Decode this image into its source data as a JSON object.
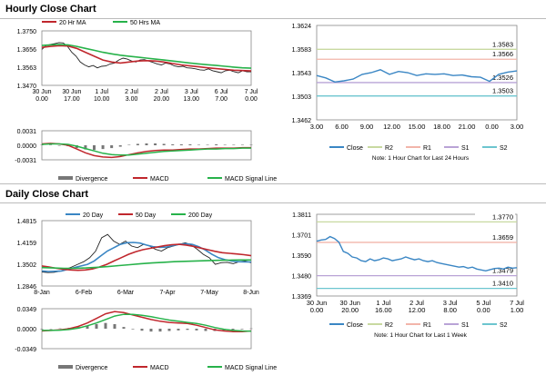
{
  "sections": {
    "hourly_title": "Hourly Close Chart",
    "daily_title": "Daily Close Chart"
  },
  "colors": {
    "close": "#3a86c4",
    "ma_fast": "#c0272d",
    "ma_slow": "#27b24a",
    "blue": "#3a86c4",
    "r2": "#c8d9a0",
    "r1": "#f2b5aa",
    "s1": "#b9a3d6",
    "s2": "#6cc5cf",
    "divergence": "#777777",
    "grid": "#cccccc"
  },
  "chart_data": [
    {
      "id": "hourly_price",
      "type": "line",
      "title": "Hourly Close Chart",
      "legend": [
        "20 Hr MA",
        "50 Hrs MA"
      ],
      "yticks": [
        "1.3750",
        "1.3656",
        "1.3563",
        "1.3470"
      ],
      "ylim": [
        1.347,
        1.375
      ],
      "xticks": [
        [
          "30 Jun",
          "0.00"
        ],
        [
          "30 Jun",
          "17.00"
        ],
        [
          "1 Jul",
          "10.00"
        ],
        [
          "2 Jul",
          "3.00"
        ],
        [
          "2 Jul",
          "20.00"
        ],
        [
          "3 Jul",
          "13.00"
        ],
        [
          "6 Jul",
          "7.00"
        ],
        [
          "7 Jul",
          "0.00"
        ]
      ],
      "series": [
        {
          "name": "Close",
          "values": [
            1.3655,
            1.3675,
            1.368,
            1.3684,
            1.369,
            1.3688,
            1.367,
            1.364,
            1.362,
            1.359,
            1.3575,
            1.3565,
            1.3572,
            1.356,
            1.3568,
            1.357,
            1.358,
            1.3585,
            1.36,
            1.361,
            1.3605,
            1.3595,
            1.359,
            1.36,
            1.3602,
            1.3595,
            1.3588,
            1.358,
            1.3575,
            1.3585,
            1.358,
            1.357,
            1.3565,
            1.3568,
            1.356,
            1.3558,
            1.3555,
            1.355,
            1.3548,
            1.3555,
            1.3545,
            1.354,
            1.3535,
            1.3545,
            1.3548,
            1.354,
            1.3535,
            1.3545,
            1.354,
            1.354
          ]
        },
        {
          "name": "20 Hr MA",
          "values": [
            1.3665,
            1.367,
            1.3674,
            1.3672,
            1.366,
            1.364,
            1.362,
            1.36,
            1.359,
            1.3585,
            1.359,
            1.3595,
            1.3597,
            1.3595,
            1.359,
            1.3582,
            1.3575,
            1.357,
            1.3565,
            1.356,
            1.3556,
            1.3552,
            1.3548,
            1.3546,
            1.3544
          ]
        },
        {
          "name": "50 Hrs MA",
          "values": [
            1.3675,
            1.3678,
            1.368,
            1.3678,
            1.367,
            1.366,
            1.365,
            1.364,
            1.3632,
            1.3625,
            1.362,
            1.3615,
            1.361,
            1.3605,
            1.36,
            1.3595,
            1.359,
            1.3585,
            1.358,
            1.3576,
            1.3572,
            1.3568,
            1.3564,
            1.356,
            1.3558
          ]
        }
      ]
    },
    {
      "id": "hourly_macd",
      "type": "line",
      "legend": [
        "Divergence",
        "MACD",
        "MACD Signal Line"
      ],
      "yticks": [
        "0.0031",
        "0.0000",
        "-0.0031"
      ],
      "ylim": [
        -0.0031,
        0.0031
      ],
      "series": [
        {
          "name": "MACD",
          "values": [
            0.0003,
            0.0004,
            0.0003,
            0.0,
            -0.0008,
            -0.0016,
            -0.0022,
            -0.0025,
            -0.0026,
            -0.0024,
            -0.002,
            -0.0016,
            -0.0013,
            -0.0011,
            -0.001,
            -0.001,
            -0.0009,
            -0.0008,
            -0.0008,
            -0.0007,
            -0.0006,
            -0.0006,
            -0.0006,
            -0.0005,
            -0.0005
          ]
        },
        {
          "name": "MACD Signal Line",
          "values": [
            0.0002,
            0.0003,
            0.0003,
            0.0002,
            -0.0002,
            -0.0007,
            -0.0012,
            -0.0017,
            -0.002,
            -0.0021,
            -0.0021,
            -0.0019,
            -0.0017,
            -0.0015,
            -0.0013,
            -0.0012,
            -0.0011,
            -0.001,
            -0.0009,
            -0.0008,
            -0.0008,
            -0.0007,
            -0.0007,
            -0.0006,
            -0.0006
          ]
        }
      ]
    },
    {
      "id": "hourly_levels",
      "type": "line",
      "yticks": [
        "1.3624",
        "1.3583",
        "1.3543",
        "1.3503",
        "1.3462"
      ],
      "ylim": [
        1.3462,
        1.3624
      ],
      "xticks": [
        "3.00",
        "6.00",
        "9.00",
        "12.00",
        "15.00",
        "18.00",
        "21.00",
        "0.00",
        "3.00"
      ],
      "levels": [
        {
          "name": "R2",
          "value": 1.3583,
          "label": "1.3583"
        },
        {
          "name": "R1",
          "value": 1.3566,
          "label": "1.3566"
        },
        {
          "name": "S1",
          "value": 1.3526,
          "label": "1.3526"
        },
        {
          "name": "S2",
          "value": 1.3503,
          "label": "1.3503"
        }
      ],
      "series": [
        {
          "name": "Close",
          "values": [
            1.3538,
            1.3534,
            1.3527,
            1.3529,
            1.3532,
            1.354,
            1.3543,
            1.3548,
            1.354,
            1.3545,
            1.3543,
            1.3538,
            1.3541,
            1.354,
            1.3541,
            1.3538,
            1.3539,
            1.3536,
            1.3535,
            1.3528,
            1.354,
            1.3544,
            1.3546
          ]
        }
      ],
      "legend": [
        "Close",
        "R2",
        "R1",
        "S1",
        "S2"
      ],
      "note": "Note: 1 Hour Chart for Last 24 Hours"
    },
    {
      "id": "daily_price",
      "type": "line",
      "title": "Daily Close Chart",
      "legend": [
        "20 Day",
        "50 Day",
        "200 Day"
      ],
      "yticks": [
        "1.4815",
        "1.4159",
        "1.3502",
        "1.2846"
      ],
      "ylim": [
        1.2846,
        1.4815
      ],
      "xticks": [
        "8-Jan",
        "6-Feb",
        "6-Mar",
        "7-Apr",
        "7-May",
        "8-Jun"
      ],
      "series": [
        {
          "name": "Close",
          "values": [
            1.327,
            1.325,
            1.326,
            1.329,
            1.335,
            1.342,
            1.35,
            1.358,
            1.37,
            1.39,
            1.43,
            1.44,
            1.42,
            1.41,
            1.42,
            1.405,
            1.4,
            1.41,
            1.405,
            1.395,
            1.39,
            1.4,
            1.405,
            1.41,
            1.415,
            1.408,
            1.395,
            1.38,
            1.37,
            1.35,
            1.355,
            1.356,
            1.352,
            1.358,
            1.36,
            1.355
          ]
        },
        {
          "name": "20 Day",
          "values": [
            1.33,
            1.328,
            1.329,
            1.33,
            1.335,
            1.34,
            1.345,
            1.35,
            1.36,
            1.375,
            1.39,
            1.4,
            1.41,
            1.415,
            1.416,
            1.414,
            1.408,
            1.403,
            1.401,
            1.402,
            1.406,
            1.41,
            1.412,
            1.41,
            1.403,
            1.393,
            1.38,
            1.37,
            1.364,
            1.36,
            1.358,
            1.357,
            1.357
          ]
        },
        {
          "name": "50 Day",
          "values": [
            1.345,
            1.342,
            1.338,
            1.335,
            1.333,
            1.332,
            1.333,
            1.336,
            1.342,
            1.35,
            1.36,
            1.37,
            1.38,
            1.388,
            1.394,
            1.398,
            1.402,
            1.406,
            1.409,
            1.41,
            1.408,
            1.404,
            1.399,
            1.394,
            1.389,
            1.385,
            1.383,
            1.381,
            1.379,
            1.376
          ]
        },
        {
          "name": "200 Day",
          "values": [
            1.34,
            1.339,
            1.338,
            1.338,
            1.339,
            1.341,
            1.343,
            1.346,
            1.349,
            1.352,
            1.354,
            1.356,
            1.358,
            1.359,
            1.36,
            1.361,
            1.362,
            1.3625,
            1.363,
            1.3632
          ]
        }
      ]
    },
    {
      "id": "daily_macd",
      "type": "line",
      "legend": [
        "Divergence",
        "MACD",
        "MACD Signal Line"
      ],
      "yticks": [
        "0.0349",
        "0.0000",
        "-0.0349"
      ],
      "ylim": [
        -0.0349,
        0.0349
      ],
      "series": [
        {
          "name": "MACD",
          "values": [
            -0.004,
            -0.003,
            -0.002,
            0.0,
            0.004,
            0.01,
            0.018,
            0.026,
            0.03,
            0.028,
            0.024,
            0.02,
            0.016,
            0.013,
            0.011,
            0.01,
            0.009,
            0.006,
            0.002,
            -0.002,
            -0.004,
            -0.005,
            -0.005,
            -0.004
          ]
        },
        {
          "name": "MACD Signal Line",
          "values": [
            -0.003,
            -0.003,
            -0.0025,
            -0.0015,
            0.001,
            0.005,
            0.01,
            0.016,
            0.022,
            0.025,
            0.025,
            0.0235,
            0.021,
            0.018,
            0.015,
            0.013,
            0.011,
            0.009,
            0.006,
            0.002,
            -0.001,
            -0.003,
            -0.004,
            -0.0045
          ]
        }
      ]
    },
    {
      "id": "daily_levels",
      "type": "line",
      "yticks": [
        "1.3811",
        "1.3701",
        "1.3590",
        "1.3480",
        "1.3369"
      ],
      "ylim": [
        1.3369,
        1.3811
      ],
      "xticks": [
        [
          "30 Jun",
          "0.00"
        ],
        [
          "30 Jun",
          "20.00"
        ],
        [
          "1 Jul",
          "16.00"
        ],
        [
          "2 Jul",
          "12.00"
        ],
        [
          "3 Jul",
          "8.00"
        ],
        [
          "5 Jul",
          "0.00"
        ],
        [
          "7 Jul",
          "1.00"
        ]
      ],
      "levels": [
        {
          "name": "R2",
          "value": 1.377,
          "label": "1.3770"
        },
        {
          "name": "R1",
          "value": 1.3659,
          "label": "1.3659"
        },
        {
          "name": "S1",
          "value": 1.3479,
          "label": "1.3479"
        },
        {
          "name": "S2",
          "value": 1.341,
          "label": "1.3410"
        }
      ],
      "series": [
        {
          "name": "Close",
          "values": [
            1.3665,
            1.3672,
            1.3675,
            1.369,
            1.368,
            1.366,
            1.361,
            1.36,
            1.358,
            1.3575,
            1.356,
            1.3555,
            1.357,
            1.356,
            1.3565,
            1.3575,
            1.357,
            1.356,
            1.3565,
            1.357,
            1.358,
            1.3572,
            1.3565,
            1.357,
            1.356,
            1.3555,
            1.356,
            1.355,
            1.3545,
            1.354,
            1.3535,
            1.353,
            1.3525,
            1.3528,
            1.352,
            1.3525,
            1.3515,
            1.351,
            1.3505,
            1.3512,
            1.3518,
            1.352,
            1.3515,
            1.3525,
            1.352,
            1.3522
          ]
        }
      ],
      "legend": [
        "Close",
        "R2",
        "R1",
        "S1",
        "S2"
      ],
      "note": "Note: 1 Hour Chart for  Last 1 Week"
    }
  ]
}
